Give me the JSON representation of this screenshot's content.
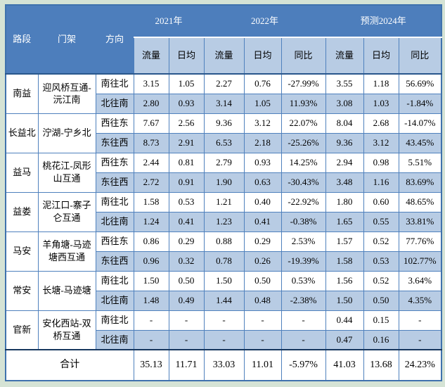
{
  "colors": {
    "page_bg": "#d5e3d5",
    "header_bg": "#4d7ebc",
    "header_text": "#ffffff",
    "row_stripe": "#b8cce4",
    "grid_border": "#4f81bd",
    "dark_line": "#29578c",
    "text": "#000000"
  },
  "table": {
    "col_headers": {
      "road": "路段",
      "gantry": "门架",
      "direction": "方向"
    },
    "year_groups": [
      {
        "label": "2021年",
        "sub": [
          "流量",
          "日均"
        ]
      },
      {
        "label": "2022年",
        "sub": [
          "流量",
          "日均",
          "同比"
        ]
      },
      {
        "label": "预测2024年",
        "sub": [
          "流量",
          "日均",
          "同比"
        ]
      }
    ],
    "sections": [
      {
        "road": "南益",
        "gantry": "迎风桥互通-沅江南",
        "rows": [
          {
            "direction": "南往北",
            "values": [
              "3.15",
              "1.05",
              "2.27",
              "0.76",
              "-27.99%",
              "3.55",
              "1.18",
              "56.69%"
            ]
          },
          {
            "direction": "北往南",
            "values": [
              "2.80",
              "0.93",
              "3.14",
              "1.05",
              "11.93%",
              "3.08",
              "1.03",
              "-1.84%"
            ]
          }
        ]
      },
      {
        "road": "长益北",
        "gantry": "泞湖-宁乡北",
        "rows": [
          {
            "direction": "西往东",
            "values": [
              "7.67",
              "2.56",
              "9.36",
              "3.12",
              "22.07%",
              "8.04",
              "2.68",
              "-14.07%"
            ]
          },
          {
            "direction": "东往西",
            "values": [
              "8.73",
              "2.91",
              "6.53",
              "2.18",
              "-25.26%",
              "9.36",
              "3.12",
              "43.45%"
            ]
          }
        ]
      },
      {
        "road": "益马",
        "gantry": "桃花江-凤形山互通",
        "rows": [
          {
            "direction": "西往东",
            "values": [
              "2.44",
              "0.81",
              "2.79",
              "0.93",
              "14.25%",
              "2.94",
              "0.98",
              "5.51%"
            ]
          },
          {
            "direction": "东往西",
            "values": [
              "2.72",
              "0.91",
              "1.90",
              "0.63",
              "-30.43%",
              "3.48",
              "1.16",
              "83.69%"
            ]
          }
        ]
      },
      {
        "road": "益娄",
        "gantry": "泥江口-寨子仑互通",
        "rows": [
          {
            "direction": "南往北",
            "values": [
              "1.58",
              "0.53",
              "1.21",
              "0.40",
              "-22.92%",
              "1.80",
              "0.60",
              "48.65%"
            ]
          },
          {
            "direction": "北往南",
            "values": [
              "1.24",
              "0.41",
              "1.23",
              "0.41",
              "-0.38%",
              "1.65",
              "0.55",
              "33.81%"
            ]
          }
        ]
      },
      {
        "road": "马安",
        "gantry": "羊角塘-马迹塘西互通",
        "rows": [
          {
            "direction": "西往东",
            "values": [
              "0.86",
              "0.29",
              "0.88",
              "0.29",
              "2.53%",
              "1.57",
              "0.52",
              "77.76%"
            ]
          },
          {
            "direction": "东往西",
            "values": [
              "0.96",
              "0.32",
              "0.78",
              "0.26",
              "-19.39%",
              "1.58",
              "0.53",
              "102.77%"
            ]
          }
        ]
      },
      {
        "road": "常安",
        "gantry": "长塘-马迹塘",
        "rows": [
          {
            "direction": "南往北",
            "values": [
              "1.50",
              "0.50",
              "1.50",
              "0.50",
              "0.53%",
              "1.56",
              "0.52",
              "3.64%"
            ]
          },
          {
            "direction": "北往南",
            "values": [
              "1.48",
              "0.49",
              "1.44",
              "0.48",
              "-2.38%",
              "1.50",
              "0.50",
              "4.35%"
            ]
          }
        ]
      },
      {
        "road": "官新",
        "gantry": "安化西站-双桥互通",
        "rows": [
          {
            "direction": "南往北",
            "values": [
              "-",
              "-",
              "-",
              "-",
              "-",
              "0.44",
              "0.15",
              "-"
            ]
          },
          {
            "direction": "北往南",
            "values": [
              "-",
              "-",
              "-",
              "-",
              "-",
              "0.47",
              "0.16",
              "-"
            ]
          }
        ]
      }
    ],
    "total": {
      "label": "合计",
      "values": [
        "35.13",
        "11.71",
        "33.03",
        "11.01",
        "-5.97%",
        "41.03",
        "13.68",
        "24.23%"
      ]
    }
  }
}
